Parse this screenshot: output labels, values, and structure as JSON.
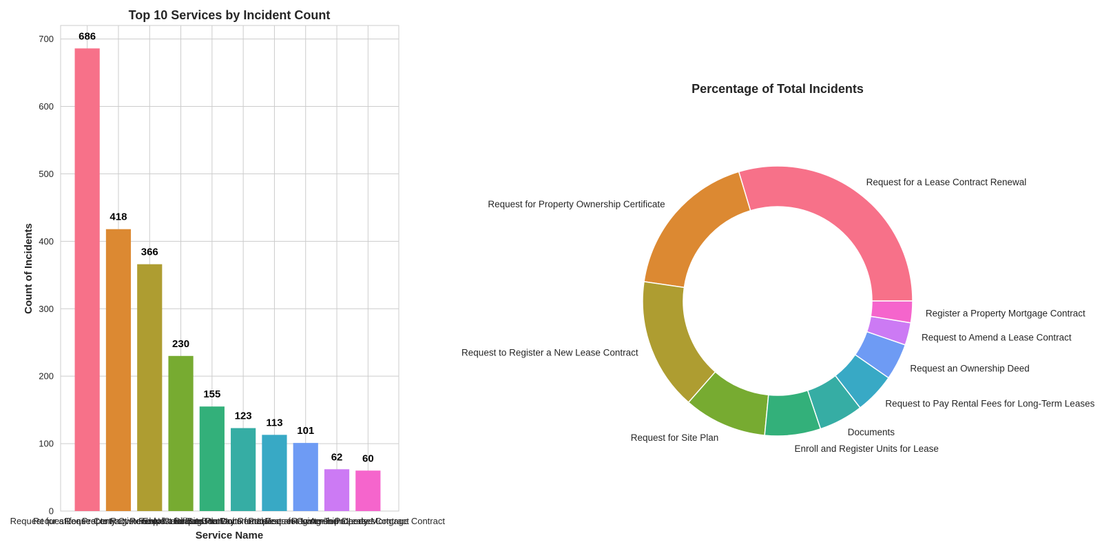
{
  "chart_data": [
    {
      "type": "bar",
      "title": "Top 10 Services by Incident Count",
      "xlabel": "Service Name",
      "ylabel": "Count of Incidents",
      "ylim": [
        0,
        720
      ],
      "yticks": [
        0,
        100,
        200,
        300,
        400,
        500,
        600,
        700
      ],
      "grid": true,
      "categories": [
        "Request for a Lease Contract Renewal",
        "Request for Property Ownership Certificate",
        "Request to Register a New Lease Contract",
        "Request for Site Plan",
        "Enroll and Register Units for Lease",
        "Documents",
        "Request to Pay Rental Fees for Long-Term Leases",
        "Request an Ownership Deed",
        "Request to Amend a Lease Contract",
        "Register a Property Mortgage Contract"
      ],
      "values": [
        686,
        418,
        366,
        230,
        155,
        123,
        113,
        101,
        62,
        60
      ],
      "colors": [
        "#f77189",
        "#dc8932",
        "#ae9d31",
        "#77ab31",
        "#33b07a",
        "#36ada4",
        "#38a9c5",
        "#6e9bf4",
        "#cc7af4",
        "#f565cc"
      ]
    },
    {
      "type": "pie",
      "donut": true,
      "title": "Percentage of Total Incidents",
      "labels": [
        "Request for a Lease Contract Renewal",
        "Request for Property Ownership Certificate",
        "Request to Register a New Lease Contract",
        "Request for Site Plan",
        "Enroll and Register Units for Lease",
        "Documents",
        "Request to Pay Rental Fees for Long-Term Leases",
        "Request an Ownership Deed",
        "Request to Amend a Lease Contract",
        "Register a Property Mortgage Contract"
      ],
      "values": [
        686,
        418,
        366,
        230,
        155,
        123,
        113,
        101,
        62,
        60
      ],
      "colors": [
        "#f77189",
        "#dc8932",
        "#ae9d31",
        "#77ab31",
        "#33b07a",
        "#36ada4",
        "#38a9c5",
        "#6e9bf4",
        "#cc7af4",
        "#f565cc"
      ]
    }
  ]
}
